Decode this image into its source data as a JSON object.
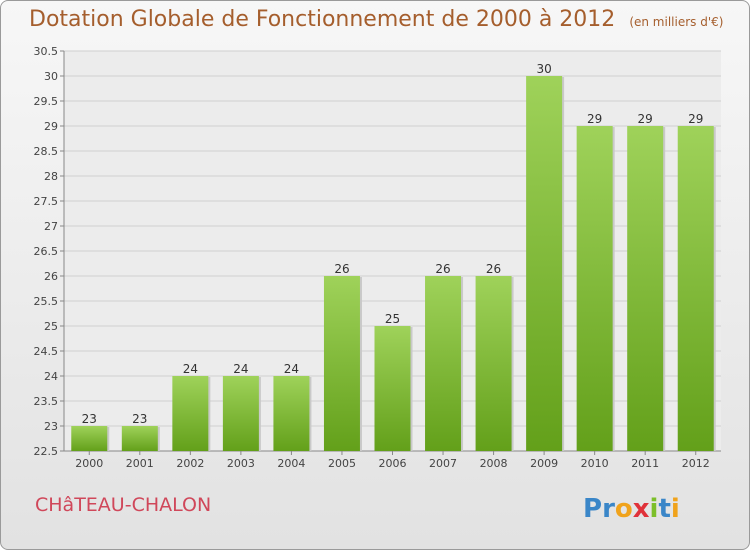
{
  "chart_data": {
    "type": "bar",
    "title": "Dotation Globale de Fonctionnement de 2000 à 2012",
    "subtitle": "(en milliers d'€)",
    "categories": [
      "2000",
      "2001",
      "2002",
      "2003",
      "2004",
      "2005",
      "2006",
      "2007",
      "2008",
      "2009",
      "2010",
      "2011",
      "2012"
    ],
    "values": [
      23,
      23,
      24,
      24,
      24,
      26,
      25,
      26,
      26,
      30,
      29,
      29,
      29
    ],
    "value_labels": [
      "23",
      "23",
      "24",
      "24",
      "24",
      "26",
      "25",
      "26",
      "26",
      "30",
      "29",
      "29",
      "29"
    ],
    "ylim": [
      22.5,
      30.5
    ],
    "yticks": [
      "22.5",
      "23",
      "23.5",
      "24",
      "24.5",
      "25",
      "25.5",
      "26",
      "26.5",
      "27",
      "27.5",
      "28",
      "28.5",
      "29",
      "29.5",
      "30",
      "30.5"
    ],
    "grid": true,
    "bar_color_top": "#9fd25a",
    "bar_color_bottom": "#63a01a"
  },
  "footer": {
    "commune": "CHâTEAU-CHALON",
    "logo_text": "Proxiti"
  }
}
